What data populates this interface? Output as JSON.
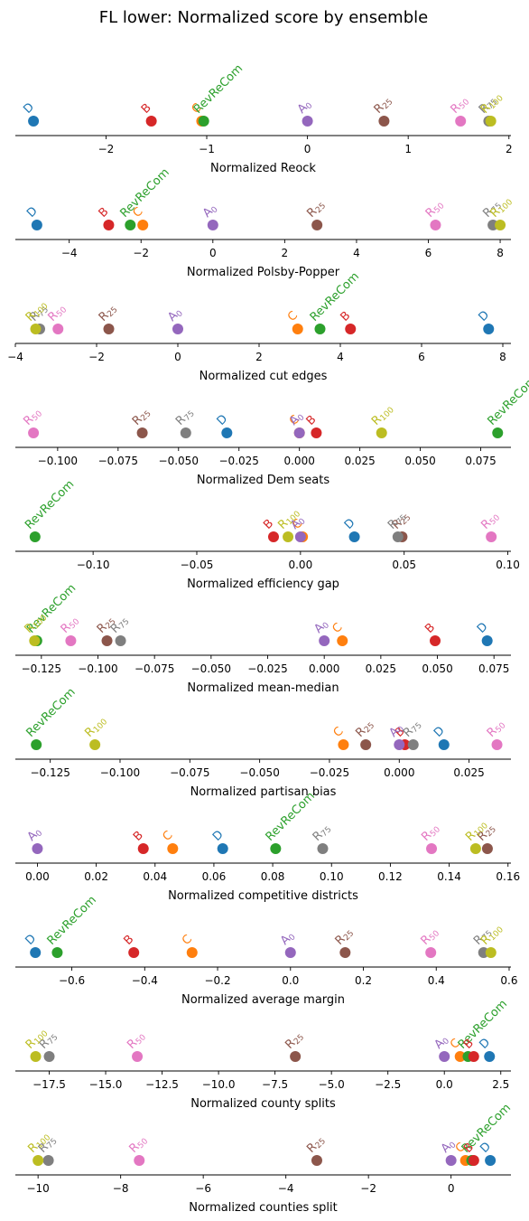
{
  "title": "FL lower: Normalized score by ensemble",
  "ensembles": {
    "D": {
      "label": "D",
      "color": "#1f77b4"
    },
    "C": {
      "label": "C",
      "color": "#ff7f0e"
    },
    "RevReCom": {
      "label": "RevReCom",
      "color": "#2ca02c"
    },
    "B": {
      "label": "B",
      "color": "#d62728"
    },
    "A0": {
      "label": "A",
      "sub": "0",
      "color": "#9467bd"
    },
    "R25": {
      "label": "R",
      "sub": "25",
      "color": "#8c564b"
    },
    "R50": {
      "label": "R",
      "sub": "50",
      "color": "#e377c2"
    },
    "R75": {
      "label": "R",
      "sub": "75",
      "color": "#7f7f7f"
    },
    "R100": {
      "label": "R",
      "sub": "100",
      "color": "#bcbd22"
    }
  },
  "chart_data": [
    {
      "type": "scatter",
      "xlabel": "Normalized Reock",
      "xlim": [
        -2.9,
        2.02
      ],
      "ticks": [
        -2,
        -1,
        0,
        1,
        2
      ],
      "points": {
        "D": -2.72,
        "B": -1.55,
        "RevReCom": -1.03,
        "C": -1.05,
        "A0": 0.0,
        "R25": 0.76,
        "R50": 1.52,
        "R75": 1.8,
        "R100": 1.82
      }
    },
    {
      "type": "scatter",
      "xlabel": "Normalized Polsby-Popper",
      "xlim": [
        -5.5,
        8.3
      ],
      "ticks": [
        -4,
        -2,
        0,
        2,
        4,
        6,
        8
      ],
      "points": {
        "D": -4.9,
        "B": -2.9,
        "RevReCom": -2.3,
        "C": -1.95,
        "A0": 0.0,
        "R25": 2.9,
        "R50": 6.2,
        "R75": 7.8,
        "R100": 8.0
      }
    },
    {
      "type": "scatter",
      "xlabel": "Normalized cut edges",
      "xlim": [
        -4.0,
        8.2
      ],
      "ticks": [
        -4,
        -2,
        0,
        2,
        4,
        6,
        8
      ],
      "points": {
        "D": 7.65,
        "B": 4.25,
        "RevReCom": 3.5,
        "C": 2.95,
        "A0": 0.0,
        "R25": -1.7,
        "R50": -2.95,
        "R75": -3.4,
        "R100": -3.5
      }
    },
    {
      "type": "scatter",
      "xlabel": "Normalized Dem seats",
      "xlim": [
        -0.1175,
        0.0875
      ],
      "ticks": [
        -0.1,
        -0.075,
        -0.05,
        -0.025,
        0.0,
        0.025,
        0.05,
        0.075
      ],
      "tick_labels": [
        "−0.100",
        "−0.075",
        "−0.050",
        "−0.025",
        "0.000",
        "0.025",
        "0.050",
        "0.075"
      ],
      "points": {
        "R50": -0.11,
        "R25": -0.065,
        "R75": -0.047,
        "D": -0.03,
        "C": 0.0,
        "A0": 0.0,
        "B": 0.007,
        "R100": 0.034,
        "RevReCom": 0.082
      }
    },
    {
      "type": "scatter",
      "xlabel": "Normalized efficiency gap",
      "xlim": [
        -0.1375,
        0.1015
      ],
      "ticks": [
        -0.1,
        -0.05,
        0.0,
        0.05,
        0.1
      ],
      "tick_labels": [
        "−0.10",
        "−0.05",
        "0.00",
        "0.05",
        "0.10"
      ],
      "points": {
        "RevReCom": -0.128,
        "B": -0.013,
        "R100": -0.006,
        "C": 0.001,
        "A0": 0.0,
        "D": 0.026,
        "R75": 0.047,
        "R25": 0.049,
        "R50": 0.092
      }
    },
    {
      "type": "scatter",
      "xlabel": "Normalized mean-median",
      "xlim": [
        -0.1365,
        0.0825
      ],
      "ticks": [
        -0.125,
        -0.1,
        -0.075,
        -0.05,
        -0.025,
        0.0,
        0.025,
        0.05,
        0.075
      ],
      "tick_labels": [
        "−0.125",
        "−0.100",
        "−0.075",
        "−0.050",
        "−0.025",
        "0.000",
        "0.025",
        "0.050",
        "0.075"
      ],
      "points": {
        "R100": -0.128,
        "RevReCom": -0.127,
        "R50": -0.112,
        "R25": -0.096,
        "R75": -0.09,
        "A0": 0.0,
        "C": 0.008,
        "B": 0.049,
        "D": 0.072
      }
    },
    {
      "type": "scatter",
      "xlabel": "Normalized partisan bias",
      "xlim": [
        -0.1375,
        0.04
      ],
      "ticks": [
        -0.125,
        -0.1,
        -0.075,
        -0.05,
        -0.025,
        0.0,
        0.025
      ],
      "tick_labels": [
        "−0.125",
        "−0.100",
        "−0.075",
        "−0.050",
        "−0.025",
        "0.000",
        "0.025"
      ],
      "points": {
        "RevReCom": -0.13,
        "R100": -0.109,
        "C": -0.02,
        "R25": -0.012,
        "A0": 0.0,
        "D": 0.016,
        "B": 0.002,
        "R75": 0.005,
        "R50": 0.035
      }
    },
    {
      "type": "scatter",
      "xlabel": "Normalized competitive districts",
      "xlim": [
        -0.0075,
        0.161
      ],
      "ticks": [
        0.0,
        0.02,
        0.04,
        0.06,
        0.08,
        0.1,
        0.12,
        0.14,
        0.16
      ],
      "tick_labels": [
        "0.00",
        "0.02",
        "0.04",
        "0.06",
        "0.08",
        "0.10",
        "0.12",
        "0.14",
        "0.16"
      ],
      "points": {
        "A0": 0.0,
        "B": 0.036,
        "C": 0.046,
        "D": 0.063,
        "RevReCom": 0.081,
        "R75": 0.097,
        "R50": 0.134,
        "R100": 0.149,
        "R25": 0.153
      }
    },
    {
      "type": "scatter",
      "xlabel": "Normalized average margin",
      "xlim": [
        -0.755,
        0.605
      ],
      "ticks": [
        -0.6,
        -0.4,
        -0.2,
        0.0,
        0.2,
        0.4,
        0.6
      ],
      "tick_labels": [
        "−0.6",
        "−0.4",
        "−0.2",
        "0.0",
        "0.2",
        "0.4",
        "0.6"
      ],
      "points": {
        "D": -0.7,
        "RevReCom": -0.64,
        "B": -0.43,
        "C": -0.27,
        "A0": 0.0,
        "R25": 0.15,
        "R50": 0.385,
        "R75": 0.53,
        "R100": 0.55
      }
    },
    {
      "type": "scatter",
      "xlabel": "Normalized county splits",
      "xlim": [
        -19.0,
        2.95
      ],
      "ticks": [
        -17.5,
        -15,
        -12.5,
        -10,
        -7.5,
        -5,
        -2.5,
        0,
        2.5
      ],
      "tick_labels": [
        "−17.5",
        "−15.0",
        "−12.5",
        "−10.0",
        "−7.5",
        "−5.0",
        "−2.5",
        "0.0",
        "2.5"
      ],
      "points": {
        "R100": -18.1,
        "R75": -17.5,
        "R50": -13.6,
        "R25": -6.6,
        "A0": 0.0,
        "C": 0.7,
        "RevReCom": 1.05,
        "B": 1.3,
        "D": 2.0
      }
    },
    {
      "type": "scatter",
      "xlabel": "Normalized counties split",
      "xlim": [
        -10.55,
        1.45
      ],
      "ticks": [
        -10,
        -8,
        -6,
        -4,
        -2,
        0
      ],
      "tick_labels": [
        "−10",
        "−8",
        "−6",
        "−4",
        "−2",
        "0"
      ],
      "points": {
        "R100": -10.0,
        "R75": -9.75,
        "R50": -7.55,
        "R25": -3.25,
        "A0": 0.0,
        "C": 0.35,
        "B": 0.55,
        "RevReCom": 0.5,
        "D": 0.95
      }
    }
  ]
}
